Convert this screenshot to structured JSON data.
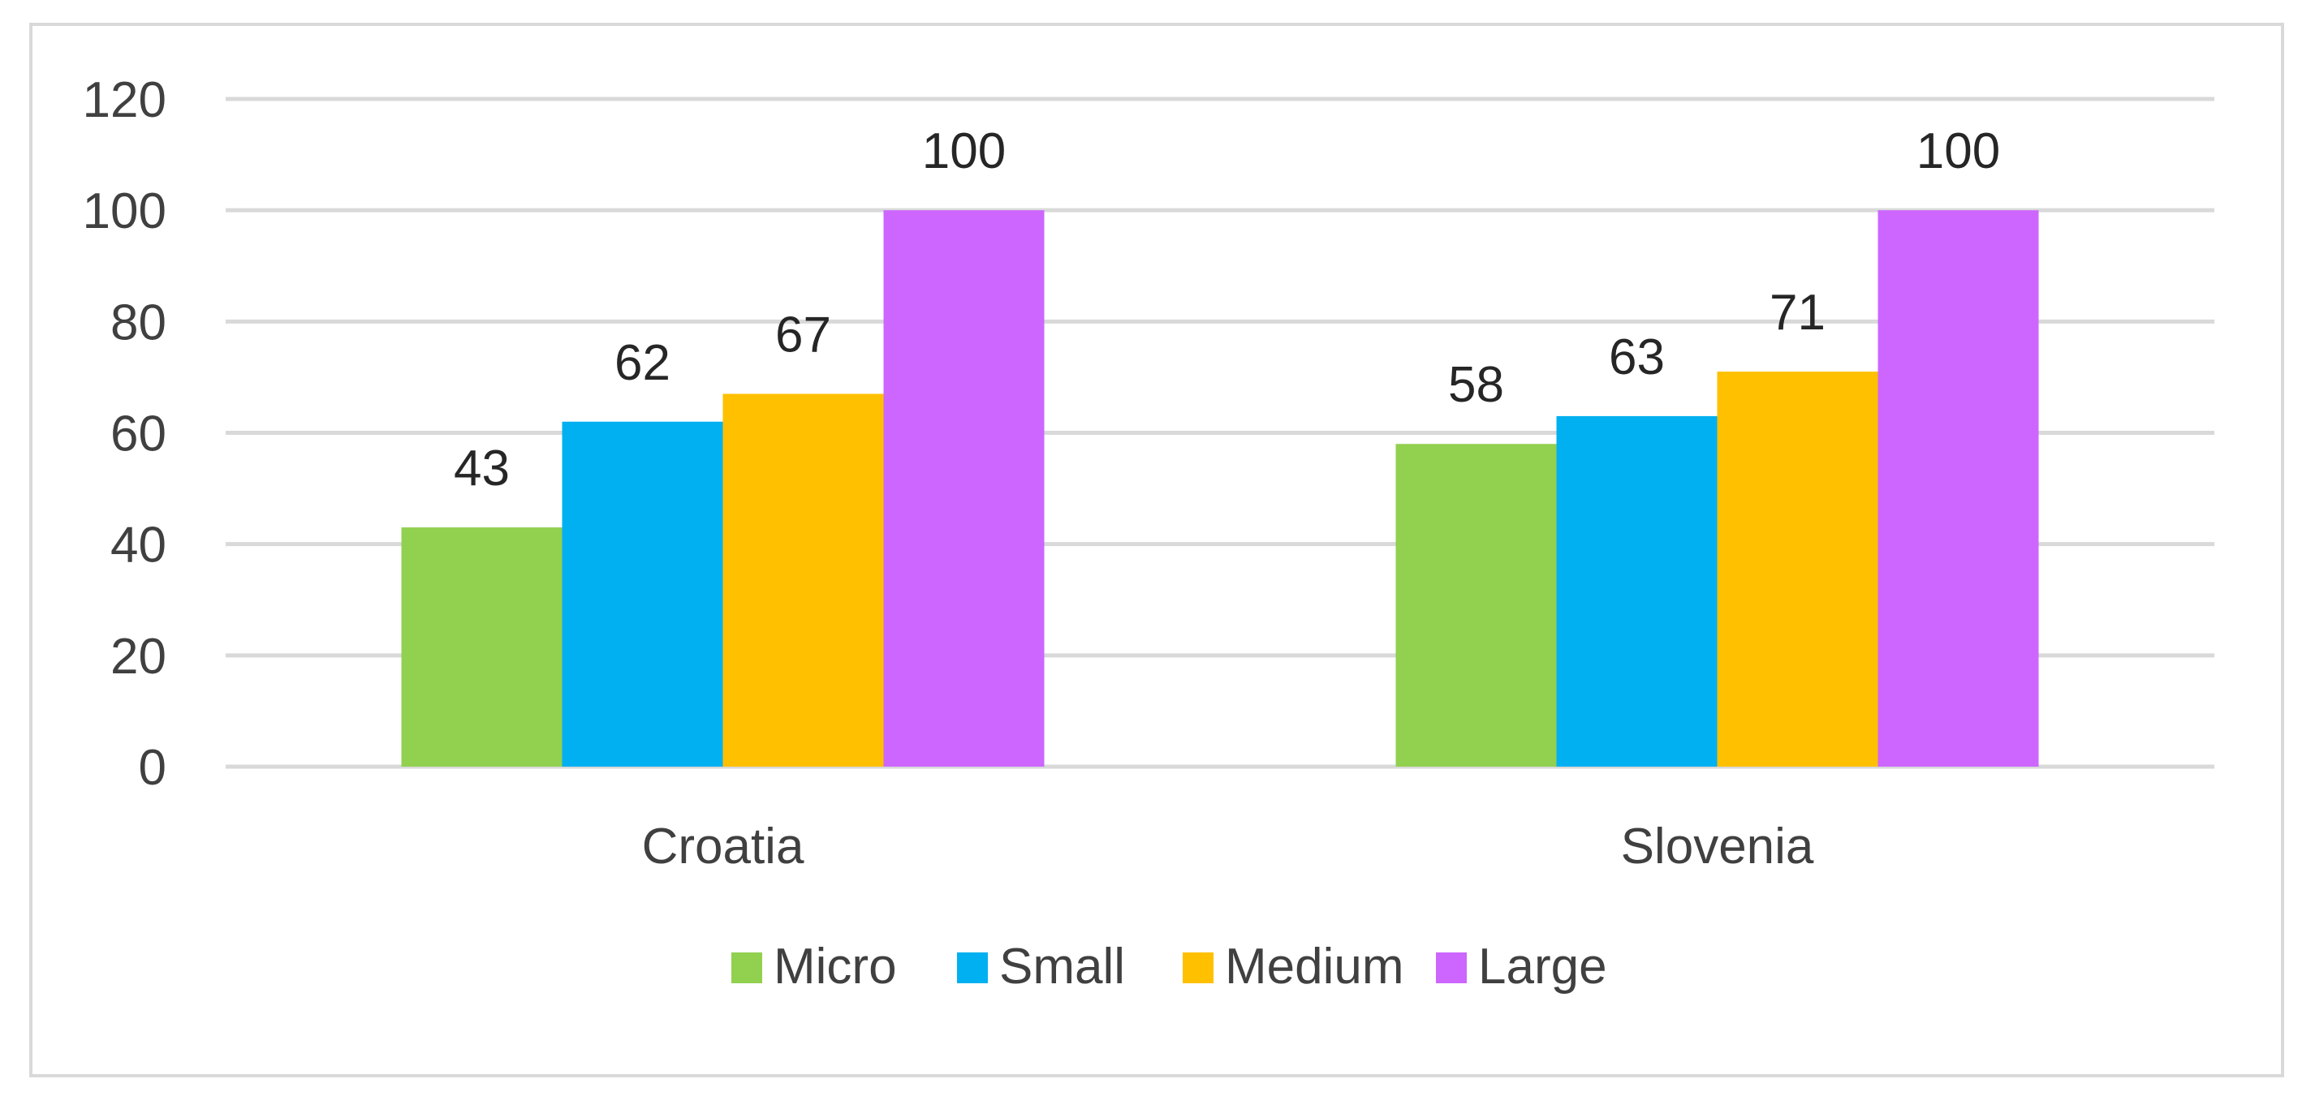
{
  "chart_data": {
    "type": "bar",
    "title": "",
    "xlabel": "",
    "ylabel": "",
    "categories": [
      "Croatia",
      "Slovenia"
    ],
    "series": [
      {
        "name": "Micro",
        "color": "#92d050",
        "values": [
          43,
          58
        ]
      },
      {
        "name": "Small",
        "color": "#00b0f0",
        "values": [
          62,
          63
        ]
      },
      {
        "name": "Medium",
        "color": "#ffc000",
        "values": [
          67,
          71
        ]
      },
      {
        "name": "Large",
        "color": "#cc66ff",
        "values": [
          100,
          100
        ]
      }
    ],
    "ylim": [
      0,
      120
    ],
    "yticks": [
      "0",
      "20",
      "40",
      "60",
      "80",
      "100",
      "120"
    ],
    "grid": true,
    "data_labels": true,
    "legend_position": "bottom"
  }
}
